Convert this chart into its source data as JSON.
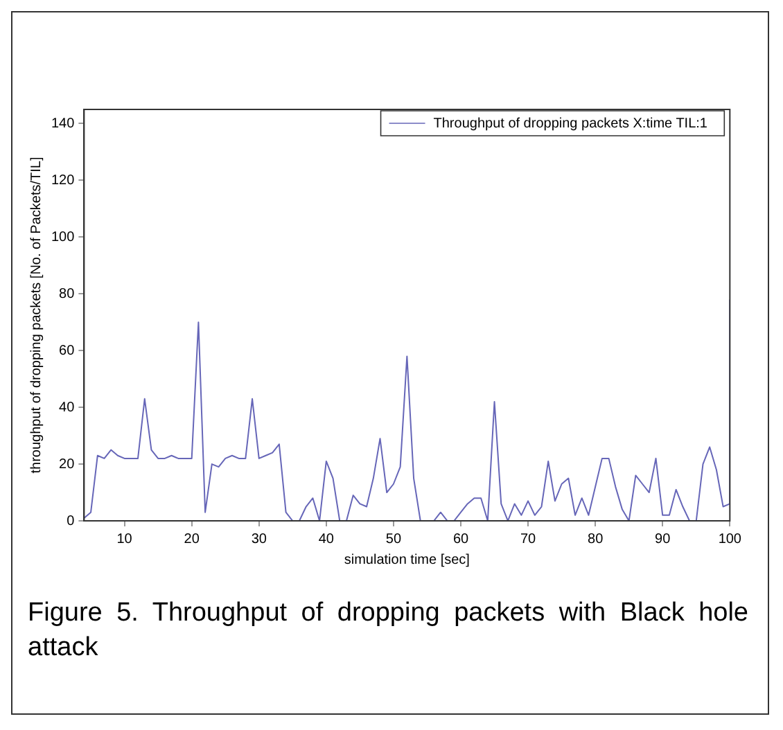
{
  "chart_data": {
    "type": "line",
    "xlabel": "simulation time [sec]",
    "ylabel": "throughput of dropping packets [No. of Packets/TIL]",
    "x": [
      4,
      5,
      6,
      7,
      8,
      9,
      10,
      11,
      12,
      13,
      14,
      15,
      16,
      17,
      18,
      19,
      20,
      21,
      22,
      23,
      24,
      25,
      26,
      27,
      28,
      29,
      30,
      31,
      32,
      33,
      34,
      35,
      36,
      37,
      38,
      39,
      40,
      41,
      42,
      43,
      44,
      45,
      46,
      47,
      48,
      49,
      50,
      51,
      52,
      53,
      54,
      55,
      56,
      57,
      58,
      59,
      60,
      61,
      62,
      63,
      64,
      65,
      66,
      67,
      68,
      69,
      70,
      71,
      72,
      73,
      74,
      75,
      76,
      77,
      78,
      79,
      80,
      81,
      82,
      83,
      84,
      85,
      86,
      87,
      88,
      89,
      90,
      91,
      92,
      93,
      94,
      95,
      96,
      97,
      98,
      99,
      100,
      100
    ],
    "series": [
      {
        "name": "Throughput of dropping packets X:time TIL:1",
        "color": "#6666b8",
        "values": [
          1,
          3,
          23,
          22,
          25,
          23,
          22,
          22,
          22,
          43,
          25,
          22,
          22,
          23,
          22,
          22,
          22,
          70,
          3,
          20,
          19,
          22,
          23,
          22,
          22,
          43,
          22,
          23,
          24,
          27,
          3,
          0,
          0,
          5,
          8,
          0,
          21,
          15,
          0,
          0,
          9,
          6,
          5,
          15,
          29,
          10,
          13,
          19,
          58,
          15,
          0,
          0,
          0,
          3,
          0,
          0,
          3,
          6,
          8,
          8,
          0,
          42,
          6,
          0,
          6,
          2,
          7,
          2,
          5,
          21,
          7,
          13,
          15,
          2,
          8,
          2,
          12,
          22,
          22,
          12,
          4,
          0,
          16,
          13,
          10,
          22,
          2,
          2,
          11,
          5,
          0,
          0,
          20,
          26,
          18,
          5,
          6,
          78
        ]
      }
    ],
    "xlim": [
      4,
      100
    ],
    "xticks": [
      10,
      20,
      30,
      40,
      50,
      60,
      70,
      80,
      90,
      100
    ],
    "ylim": [
      0,
      145
    ],
    "yticks": [
      0,
      20,
      40,
      60,
      80,
      100,
      120,
      140
    ],
    "grid": false,
    "legend": "top right",
    "marker": "none",
    "line_style": "solid",
    "annotations": [
      "Figure 5. Throughput of dropping packets with Black hole attack"
    ]
  }
}
